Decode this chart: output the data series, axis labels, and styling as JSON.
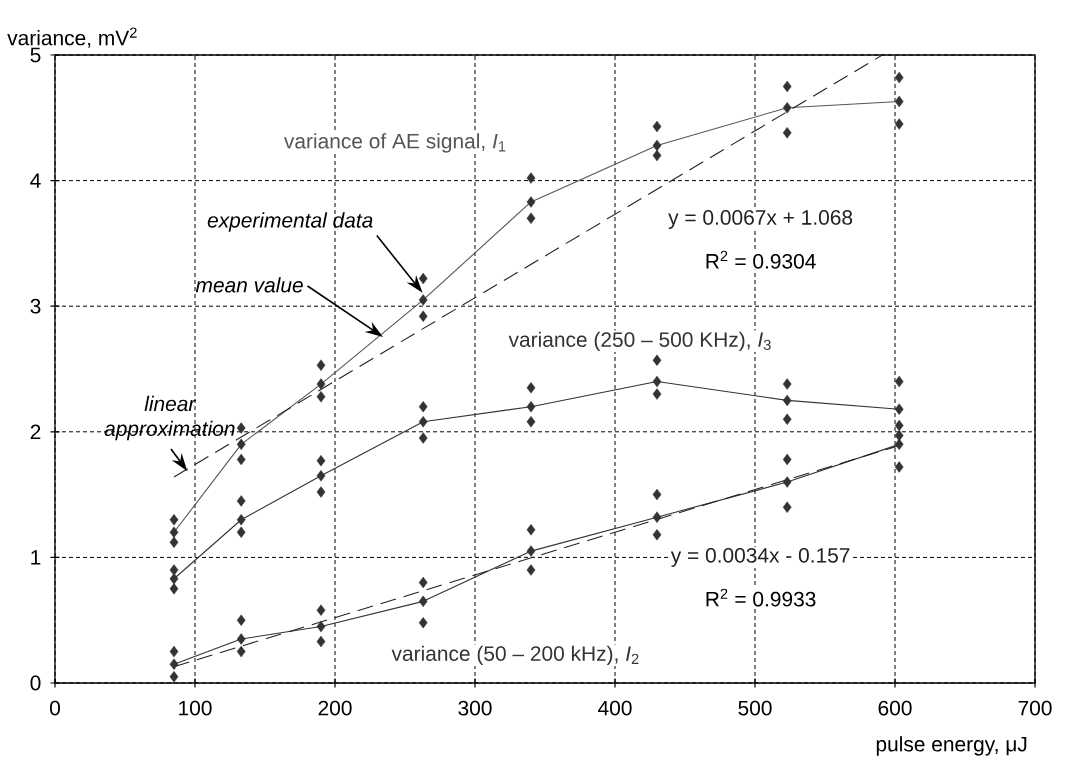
{
  "chart_data": {
    "type": "line",
    "xlabel": "pulse energy, μJ",
    "ylabel": "variance, mV$^{2}$",
    "xlim": [
      0,
      700
    ],
    "ylim": [
      0,
      5
    ],
    "xticks": [
      0,
      100,
      200,
      300,
      400,
      500,
      600,
      700
    ],
    "yticks": [
      0,
      1,
      2,
      3,
      4,
      5
    ],
    "grid": true,
    "series": [
      {
        "name": "variance of AE signal, *I*$_{1}$",
        "color": "#555555",
        "marker": "none",
        "x": [
          85,
          133,
          190,
          263,
          340,
          430,
          523,
          603
        ],
        "values": [
          1.2,
          1.9,
          2.38,
          3.05,
          3.83,
          4.28,
          4.58,
          4.63
        ]
      },
      {
        "name": "variance (250 – 500 KHz), *I*$_{3}$",
        "color": "#333333",
        "marker": "none",
        "x": [
          85,
          133,
          190,
          263,
          340,
          430,
          523,
          603
        ],
        "values": [
          0.83,
          1.3,
          1.65,
          2.08,
          2.2,
          2.4,
          2.25,
          2.18
        ]
      },
      {
        "name": "variance (50 – 200 kHz), *I*$_{2}$",
        "color": "#333333",
        "marker": "none",
        "x": [
          85,
          133,
          190,
          263,
          340,
          430,
          523,
          603
        ],
        "values": [
          0.15,
          0.35,
          0.45,
          0.65,
          1.05,
          1.32,
          1.6,
          1.9
        ]
      },
      {
        "type": "scatter",
        "color": "#333333",
        "marker": "diamond",
        "x": [
          85,
          85,
          85,
          133,
          133,
          133,
          190,
          190,
          190,
          263,
          263,
          263,
          340,
          340,
          340,
          430,
          430,
          430,
          523,
          523,
          523,
          603,
          603,
          603
        ],
        "values": [
          1.12,
          1.2,
          1.3,
          1.78,
          1.9,
          2.03,
          2.28,
          2.38,
          2.53,
          2.92,
          3.05,
          3.22,
          3.7,
          3.83,
          4.02,
          4.2,
          4.28,
          4.43,
          4.38,
          4.58,
          4.75,
          4.45,
          4.63,
          4.82
        ]
      },
      {
        "type": "scatter",
        "color": "#333333",
        "marker": "diamond",
        "x": [
          85,
          85,
          85,
          133,
          133,
          133,
          190,
          190,
          190,
          263,
          263,
          263,
          340,
          340,
          340,
          430,
          430,
          430,
          523,
          523,
          523,
          603,
          603,
          603
        ],
        "values": [
          0.75,
          0.83,
          0.9,
          1.2,
          1.3,
          1.45,
          1.52,
          1.65,
          1.77,
          1.95,
          2.08,
          2.2,
          2.08,
          2.2,
          2.35,
          2.3,
          2.4,
          2.57,
          2.1,
          2.25,
          2.38,
          2.05,
          2.18,
          2.4
        ]
      },
      {
        "type": "scatter",
        "color": "#333333",
        "marker": "diamond",
        "x": [
          85,
          85,
          85,
          133,
          133,
          133,
          190,
          190,
          190,
          263,
          263,
          263,
          340,
          340,
          340,
          430,
          430,
          430,
          523,
          523,
          523,
          603,
          603,
          603
        ],
        "values": [
          0.05,
          0.15,
          0.25,
          0.25,
          0.35,
          0.5,
          0.33,
          0.45,
          0.58,
          0.48,
          0.65,
          0.8,
          0.9,
          1.05,
          1.22,
          1.18,
          1.32,
          1.5,
          1.4,
          1.6,
          1.78,
          1.72,
          1.9,
          1.97
        ]
      },
      {
        "name": "y = 0.0067x + 1.068",
        "color": "#222222",
        "marker": "none",
        "line_style": "dashed",
        "x": [
          85,
          591
        ],
        "values": [
          1.64,
          5.0
        ]
      },
      {
        "name": "y = 0.0034x - 0.157",
        "color": "#222222",
        "marker": "none",
        "line_style": "dashed",
        "x": [
          85,
          603
        ],
        "values": [
          0.13,
          1.89
        ]
      }
    ],
    "annotations": [
      "experimental data",
      "mean value",
      {
        "text": "linear approximation",
        "x": 95,
        "y": 1.68
      },
      "R$^{2}$ = 0.9304",
      "R$^{2}$ = 0.9933"
    ]
  }
}
